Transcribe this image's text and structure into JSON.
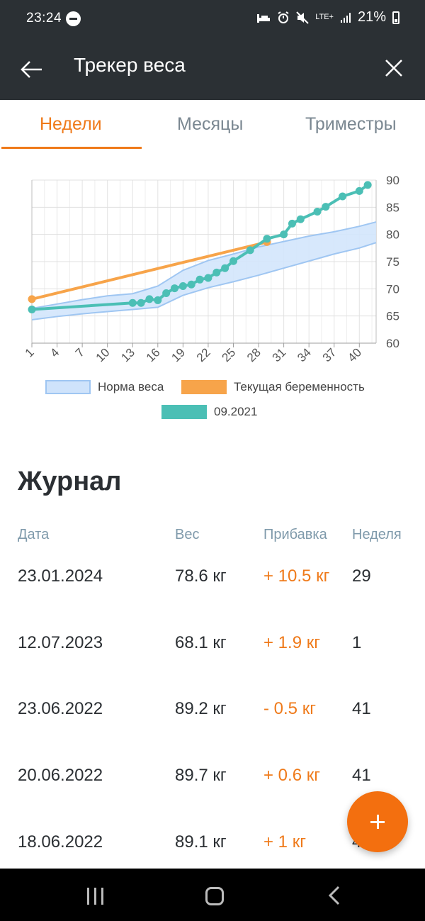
{
  "status_bar": {
    "time": "23:24",
    "battery": "21%",
    "network": "LTE+"
  },
  "app_bar": {
    "title": "Трекер веса"
  },
  "tabs": [
    {
      "label": "Недели",
      "active": true
    },
    {
      "label": "Месяцы",
      "active": false
    },
    {
      "label": "Триместры",
      "active": false
    }
  ],
  "chart_data": {
    "type": "line",
    "x_ticks": [
      "1",
      "4",
      "7",
      "10",
      "13",
      "16",
      "19",
      "22",
      "25",
      "28",
      "31",
      "34",
      "37",
      "40"
    ],
    "y_ticks": [
      "60",
      "65",
      "70",
      "75",
      "80",
      "85",
      "90"
    ],
    "xlim": [
      1,
      42
    ],
    "ylim": [
      60,
      90
    ],
    "y_axis_side": "right",
    "grid": true,
    "legend_placement": "bottom",
    "norm_band": {
      "name": "Норма веса",
      "x": [
        1,
        4,
        7,
        10,
        13,
        16,
        19,
        22,
        25,
        28,
        31,
        34,
        37,
        40,
        42
      ],
      "lower": [
        64.3,
        64.9,
        65.4,
        65.8,
        66.2,
        66.6,
        68.8,
        70.2,
        71.3,
        72.5,
        73.8,
        75.1,
        76.4,
        77.5,
        78.5
      ],
      "upper": [
        66.4,
        67.2,
        68.0,
        68.7,
        69.1,
        70.5,
        73.4,
        75.2,
        76.4,
        77.7,
        78.7,
        79.7,
        80.5,
        81.5,
        82.3
      ],
      "color": "#9fc6f2"
    },
    "series": [
      {
        "name": "Текущая беременность",
        "color": "#f7a44a",
        "x": [
          1,
          29
        ],
        "y": [
          68.1,
          78.6
        ]
      },
      {
        "name": "09.2021",
        "color": "#4bbfb5",
        "x": [
          1,
          13,
          14,
          15,
          16,
          17,
          18,
          19,
          20,
          21,
          22,
          23,
          24,
          25,
          27,
          29,
          31,
          32,
          33,
          35,
          36,
          38,
          40,
          41
        ],
        "y": [
          66.2,
          67.4,
          67.4,
          68.1,
          67.9,
          69.2,
          70.1,
          70.5,
          70.8,
          71.7,
          72.0,
          73.0,
          73.8,
          75.1,
          77.1,
          79.2,
          80.0,
          82.0,
          82.8,
          84.2,
          85.1,
          87.0,
          88.0,
          89.1
        ]
      }
    ]
  },
  "legend": [
    {
      "label": "Норма веса",
      "swatch": "norm"
    },
    {
      "label": "Текущая беременность",
      "swatch": "cur"
    },
    {
      "label": "09.2021",
      "swatch": "hist"
    }
  ],
  "journal": {
    "title": "Журнал",
    "headers": {
      "date": "Дата",
      "weight": "Вес",
      "gain": "Прибавка",
      "week": "Неделя"
    },
    "rows": [
      {
        "date": "23.01.2024",
        "weight": "78.6 кг",
        "gain": "+ 10.5 кг",
        "week": "29"
      },
      {
        "date": "12.07.2023",
        "weight": "68.1 кг",
        "gain": "+ 1.9 кг",
        "week": "1"
      },
      {
        "date": "23.06.2022",
        "weight": "89.2 кг",
        "gain": "- 0.5 кг",
        "week": "41"
      },
      {
        "date": "20.06.2022",
        "weight": "89.7 кг",
        "gain": "+ 0.6 кг",
        "week": "41"
      },
      {
        "date": "18.06.2022",
        "weight": "89.1 кг",
        "gain": "+ 1 кг",
        "week": "41"
      }
    ]
  },
  "fab": {
    "icon": "plus-icon",
    "color": "#f36f0f"
  },
  "colors": {
    "accent": "#ef7a1a",
    "header_bg": "#2b3034"
  }
}
